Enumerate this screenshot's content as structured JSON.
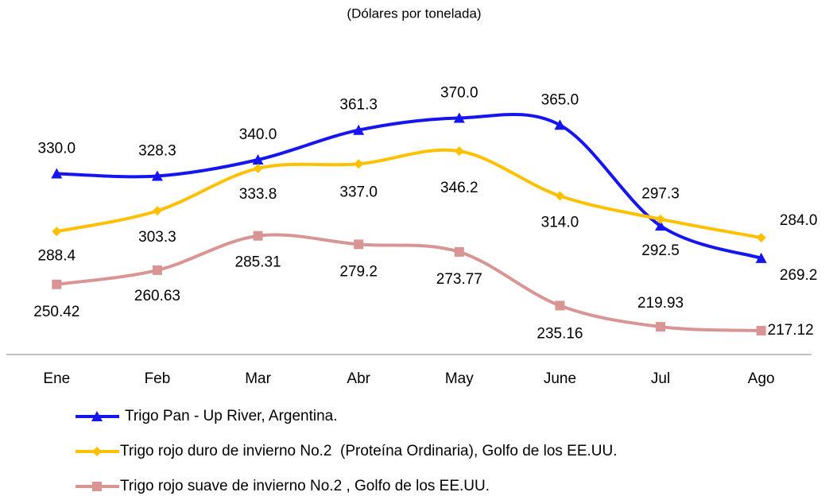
{
  "chart_data": {
    "type": "line",
    "title": "(Dólares por tonelada)",
    "categories": [
      "Ene",
      "Feb",
      "Mar",
      "Abr",
      "May",
      "June",
      "Jul",
      "Ago"
    ],
    "ylim": [
      200,
      400
    ],
    "series": [
      {
        "name": "Trigo Pan - Up River, Argentina.",
        "color": "#1515f0",
        "marker": "triangle",
        "values": [
          330.0,
          328.3,
          340.0,
          361.3,
          370.0,
          365.0,
          292.5,
          269.2
        ],
        "value_labels": [
          "330.0",
          "328.3",
          "340.0",
          "361.3",
          "370.0",
          "365.0",
          "292.5",
          "269.2"
        ]
      },
      {
        "name": "Trigo rojo duro de invierno No.2  (Proteína Ordinaria), Golfo de los EE.UU.",
        "color": "#ffc000",
        "marker": "diamond",
        "values": [
          288.4,
          303.3,
          333.8,
          337.0,
          346.2,
          314.0,
          297.3,
          284.0
        ],
        "value_labels": [
          "288.4",
          "303.3",
          "333.8",
          "337.0",
          "346.2",
          "314.0",
          "297.3",
          "284.0"
        ]
      },
      {
        "name": "Trigo rojo suave de invierno No.2 , Golfo de los EE.UU.",
        "color": "#d99594",
        "marker": "square",
        "values": [
          250.42,
          260.63,
          285.31,
          279.2,
          273.77,
          235.16,
          219.93,
          217.12
        ],
        "value_labels": [
          "250.42",
          "260.63",
          "285.31",
          "279.2",
          "273.77",
          "235.16",
          "219.93",
          "217.12"
        ]
      }
    ]
  }
}
